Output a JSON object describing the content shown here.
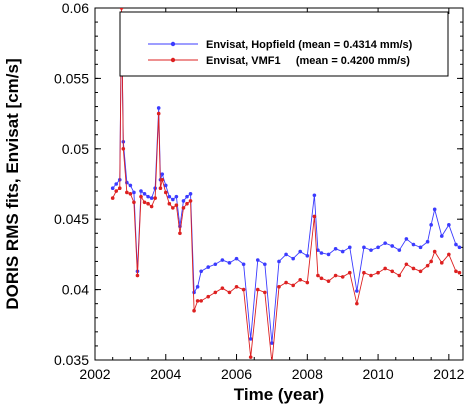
{
  "chart_data": {
    "type": "line",
    "xlabel": "Time (year)",
    "ylabel": "DORIS RMS fits, Envisat [cm/s]",
    "xlim": [
      2002,
      2012.4
    ],
    "ylim": [
      0.035,
      0.06
    ],
    "x_ticks": [
      2002,
      2004,
      2006,
      2008,
      2010,
      2012
    ],
    "x_tick_labels": [
      "2002",
      "2004",
      "2006",
      "2008",
      "2010",
      "2012"
    ],
    "y_ticks": [
      0.035,
      0.04,
      0.045,
      0.05,
      0.055,
      0.06
    ],
    "y_tick_labels": [
      "0.035",
      "0.04",
      "0.045",
      "0.05",
      "0.055",
      "0.06"
    ],
    "legend_position": "top-right",
    "series": [
      {
        "name": "Envisat, Hopfield (mean = 0.4314 mm/s)",
        "color": "#3b3bff",
        "x": [
          2002.5,
          2002.6,
          2002.7,
          2002.75,
          2002.8,
          2002.9,
          2003.0,
          2003.1,
          2003.2,
          2003.3,
          2003.4,
          2003.5,
          2003.6,
          2003.7,
          2003.8,
          2003.85,
          2003.9,
          2004.0,
          2004.1,
          2004.2,
          2004.3,
          2004.4,
          2004.5,
          2004.6,
          2004.7,
          2004.8,
          2004.9,
          2005.0,
          2005.2,
          2005.4,
          2005.6,
          2005.8,
          2006.0,
          2006.2,
          2006.4,
          2006.6,
          2006.8,
          2007.0,
          2007.2,
          2007.4,
          2007.6,
          2007.8,
          2008.0,
          2008.2,
          2008.3,
          2008.4,
          2008.6,
          2008.8,
          2009.0,
          2009.2,
          2009.4,
          2009.6,
          2009.8,
          2010.0,
          2010.2,
          2010.4,
          2010.6,
          2010.8,
          2011.0,
          2011.2,
          2011.4,
          2011.5,
          2011.6,
          2011.8,
          2012.0,
          2012.2,
          2012.3
        ],
        "y": [
          0.0472,
          0.0475,
          0.0478,
          0.0595,
          0.0505,
          0.0476,
          0.0474,
          0.0469,
          0.0413,
          0.047,
          0.0468,
          0.0466,
          0.0465,
          0.0472,
          0.0529,
          0.0478,
          0.0482,
          0.0474,
          0.0466,
          0.0464,
          0.0466,
          0.0445,
          0.0463,
          0.0466,
          0.0468,
          0.0398,
          0.0402,
          0.0413,
          0.0416,
          0.0418,
          0.0421,
          0.0419,
          0.0422,
          0.0418,
          0.0365,
          0.0421,
          0.0418,
          0.0362,
          0.042,
          0.0425,
          0.0422,
          0.0427,
          0.0424,
          0.0467,
          0.0428,
          0.0426,
          0.0425,
          0.0429,
          0.0427,
          0.043,
          0.0399,
          0.043,
          0.0428,
          0.043,
          0.0433,
          0.0431,
          0.0428,
          0.0436,
          0.0432,
          0.043,
          0.0434,
          0.0446,
          0.0457,
          0.0438,
          0.0446,
          0.0432,
          0.043
        ]
      },
      {
        "name": "Envisat, VMF1     (mean = 0.4200 mm/s)",
        "color": "#dd2020",
        "x": [
          2002.5,
          2002.6,
          2002.7,
          2002.75,
          2002.8,
          2002.9,
          2003.0,
          2003.1,
          2003.2,
          2003.3,
          2003.4,
          2003.5,
          2003.6,
          2003.7,
          2003.8,
          2003.85,
          2003.9,
          2004.0,
          2004.1,
          2004.2,
          2004.3,
          2004.4,
          2004.5,
          2004.6,
          2004.7,
          2004.8,
          2004.9,
          2005.0,
          2005.2,
          2005.4,
          2005.6,
          2005.8,
          2006.0,
          2006.2,
          2006.4,
          2006.6,
          2006.8,
          2007.0,
          2007.2,
          2007.4,
          2007.6,
          2007.8,
          2008.0,
          2008.2,
          2008.3,
          2008.4,
          2008.6,
          2008.8,
          2009.0,
          2009.2,
          2009.4,
          2009.6,
          2009.8,
          2010.0,
          2010.2,
          2010.4,
          2010.6,
          2010.8,
          2011.0,
          2011.2,
          2011.4,
          2011.5,
          2011.6,
          2011.8,
          2012.0,
          2012.2,
          2012.3
        ],
        "y": [
          0.0465,
          0.047,
          0.0472,
          0.06,
          0.05,
          0.0469,
          0.0468,
          0.0462,
          0.041,
          0.0466,
          0.0462,
          0.0461,
          0.0459,
          0.0465,
          0.0525,
          0.0472,
          0.0478,
          0.0469,
          0.0461,
          0.0458,
          0.046,
          0.044,
          0.0458,
          0.0461,
          0.0463,
          0.0385,
          0.0392,
          0.0392,
          0.0395,
          0.0398,
          0.0401,
          0.0398,
          0.0402,
          0.04,
          0.0352,
          0.04,
          0.0398,
          0.0348,
          0.0402,
          0.0405,
          0.0403,
          0.0407,
          0.0405,
          0.0452,
          0.041,
          0.0408,
          0.0406,
          0.041,
          0.0409,
          0.0412,
          0.039,
          0.0412,
          0.041,
          0.0412,
          0.0415,
          0.0413,
          0.041,
          0.0418,
          0.0415,
          0.0413,
          0.0417,
          0.042,
          0.0427,
          0.0419,
          0.0425,
          0.0413,
          0.0412
        ]
      }
    ]
  }
}
